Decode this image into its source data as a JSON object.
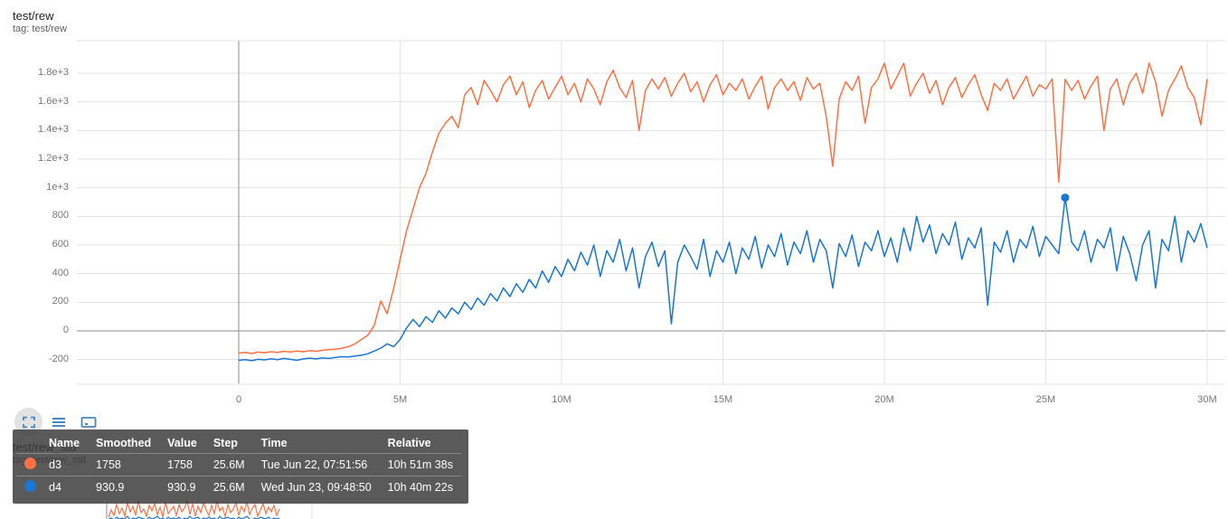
{
  "card1": {
    "title": "test/rew",
    "tag": "tag: test/rew"
  },
  "card2": {
    "title": "test/rew_std",
    "tag": "tag: test/rew_std"
  },
  "toolbar": {
    "icons": [
      "expand-selection-icon",
      "runs-menu-icon",
      "fit-domain-icon"
    ]
  },
  "tooltip": {
    "headers": [
      "Name",
      "Smoothed",
      "Value",
      "Step",
      "Time",
      "Relative"
    ],
    "rows": [
      {
        "name": "d3",
        "color": "#ff7043",
        "smoothed": "1758",
        "value": "1758",
        "step": "25.6M",
        "time": "Tue Jun 22, 07:51:56",
        "relative": "10h 51m 38s"
      },
      {
        "name": "d4",
        "color": "#1976d2",
        "smoothed": "930.9",
        "value": "930.9",
        "step": "25.6M",
        "time": "Wed Jun 23, 09:48:50",
        "relative": "10h 40m 22s"
      }
    ]
  },
  "colors": {
    "orange": "#ff7043",
    "blue": "#1976d2",
    "grid": "#e4e4e4",
    "axis": "#8d8d8d"
  },
  "chart_data": [
    {
      "type": "line",
      "title": "test/rew",
      "x_axis_type": "linear",
      "x_range": [
        0,
        30000000
      ],
      "y_range": [
        -280,
        1950
      ],
      "x_ticks": [
        {
          "label": "0",
          "step": 0
        },
        {
          "label": "5M",
          "step": 5000000
        },
        {
          "label": "10M",
          "step": 10000000
        },
        {
          "label": "15M",
          "step": 15000000
        },
        {
          "label": "20M",
          "step": 20000000
        },
        {
          "label": "25M",
          "step": 25000000
        },
        {
          "label": "30M",
          "step": 30000000
        }
      ],
      "y_ticks": [
        {
          "label": "1.8e+3",
          "value": 1800
        },
        {
          "label": "1.6e+3",
          "value": 1600
        },
        {
          "label": "1.4e+3",
          "value": 1400
        },
        {
          "label": "1.2e+3",
          "value": 1200
        },
        {
          "label": "1e+3",
          "value": 1000
        },
        {
          "label": "800",
          "value": 800
        },
        {
          "label": "600",
          "value": 600
        },
        {
          "label": "400",
          "value": 400
        },
        {
          "label": "200",
          "value": 200
        },
        {
          "label": "0",
          "value": 0
        },
        {
          "label": "-200",
          "value": -200
        }
      ],
      "series": [
        {
          "name": "d3",
          "color": "#ff7043",
          "x_start": 0,
          "x_step": 200000,
          "y": [
            -155,
            -150,
            -158,
            -148,
            -152,
            -145,
            -150,
            -142,
            -148,
            -140,
            -145,
            -138,
            -142,
            -135,
            -130,
            -128,
            -120,
            -110,
            -90,
            -60,
            -30,
            40,
            210,
            120,
            300,
            500,
            700,
            850,
            1000,
            1100,
            1250,
            1380,
            1450,
            1500,
            1420,
            1650,
            1700,
            1580,
            1750,
            1680,
            1600,
            1720,
            1780,
            1650,
            1740,
            1560,
            1680,
            1750,
            1620,
            1700,
            1780,
            1650,
            1730,
            1600,
            1760,
            1690,
            1580,
            1740,
            1820,
            1700,
            1630,
            1750,
            1400,
            1680,
            1760,
            1690,
            1770,
            1640,
            1730,
            1800,
            1670,
            1740,
            1600,
            1720,
            1790,
            1650,
            1730,
            1680,
            1760,
            1620,
            1710,
            1780,
            1550,
            1700,
            1760,
            1680,
            1740,
            1610,
            1770,
            1690,
            1730,
            1500,
            1150,
            1620,
            1740,
            1680,
            1780,
            1450,
            1700,
            1760,
            1870,
            1690,
            1780,
            1870,
            1640,
            1730,
            1800,
            1660,
            1750,
            1580,
            1700,
            1770,
            1630,
            1720,
            1790,
            1650,
            1540,
            1730,
            1680,
            1760,
            1620,
            1700,
            1780,
            1640,
            1720,
            1690,
            1760,
            1040,
            1758,
            1680,
            1750,
            1620,
            1710,
            1780,
            1400,
            1690,
            1760,
            1580,
            1730,
            1800,
            1660,
            1870,
            1740,
            1500,
            1680,
            1760,
            1850,
            1700,
            1630,
            1440,
            1760
          ]
        },
        {
          "name": "d4",
          "color": "#1976d2",
          "x_start": 0,
          "x_step": 200000,
          "y": [
            -205,
            -200,
            -208,
            -198,
            -202,
            -195,
            -200,
            -192,
            -198,
            -205,
            -195,
            -190,
            -195,
            -188,
            -192,
            -185,
            -180,
            -182,
            -175,
            -170,
            -160,
            -140,
            -120,
            -90,
            -110,
            -60,
            20,
            80,
            30,
            100,
            60,
            140,
            90,
            160,
            120,
            200,
            150,
            230,
            180,
            260,
            210,
            300,
            240,
            330,
            270,
            360,
            300,
            420,
            340,
            450,
            380,
            500,
            420,
            550,
            460,
            600,
            380,
            560,
            480,
            640,
            420,
            580,
            300,
            520,
            620,
            450,
            560,
            50,
            480,
            600,
            520,
            430,
            640,
            380,
            560,
            480,
            620,
            400,
            580,
            500,
            660,
            440,
            600,
            520,
            680,
            460,
            620,
            540,
            700,
            480,
            640,
            560,
            300,
            610,
            520,
            670,
            450,
            620,
            560,
            700,
            520,
            650,
            480,
            720,
            560,
            800,
            620,
            740,
            540,
            680,
            600,
            760,
            500,
            650,
            580,
            720,
            180,
            620,
            550,
            700,
            480,
            640,
            580,
            730,
            520,
            660,
            600,
            540,
            930.9,
            620,
            560,
            700,
            480,
            640,
            580,
            720,
            420,
            660,
            540,
            350,
            600,
            700,
            300,
            640,
            560,
            800,
            480,
            700,
            620,
            750,
            580
          ]
        }
      ],
      "marker": {
        "series": "d4",
        "step": 25600000,
        "value": 930.9
      }
    },
    {
      "type": "line",
      "title": "test/rew_std",
      "visibility": "partially visible at bottom edge",
      "series": [
        {
          "name": "d3",
          "color": "#ff7043",
          "values": [
            4,
            12,
            6,
            18,
            8,
            14,
            5,
            20,
            10,
            16,
            6,
            22,
            9,
            13,
            5,
            17,
            11,
            19,
            7,
            15,
            4,
            21,
            8,
            12,
            16,
            6,
            18,
            10,
            14,
            22,
            7,
            19,
            5,
            16,
            9,
            20,
            12,
            6,
            17,
            8,
            22,
            11,
            15,
            5,
            18,
            9,
            13,
            20,
            6,
            16,
            10,
            21,
            7,
            14,
            18,
            5,
            12,
            19,
            8,
            15,
            10,
            17,
            6,
            13
          ]
        },
        {
          "name": "d4",
          "color": "#1976d2",
          "values": [
            2,
            3,
            1,
            4,
            2,
            3,
            2,
            5,
            1,
            3,
            2,
            4,
            3,
            2,
            1,
            4,
            2,
            3,
            5,
            2,
            3,
            1,
            4,
            2,
            3,
            2,
            4,
            1,
            3,
            2,
            5,
            2,
            3,
            4,
            1,
            3,
            2,
            4,
            2,
            3,
            1,
            5,
            2,
            3,
            4,
            2,
            3,
            1,
            4,
            2,
            3,
            5,
            2,
            1,
            3,
            2,
            4,
            3,
            2,
            4,
            1,
            3,
            2,
            3
          ]
        }
      ]
    }
  ]
}
